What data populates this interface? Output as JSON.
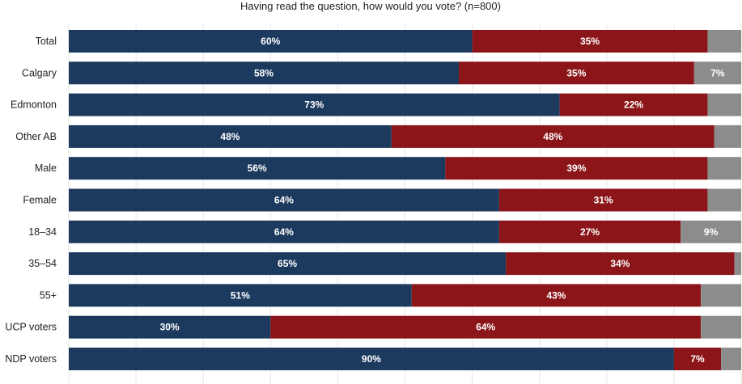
{
  "chart_data": {
    "type": "bar",
    "orientation": "horizontal",
    "stacked": true,
    "title": "Having read the question, how would you vote? (n=800)",
    "categories": [
      "Total",
      "Calgary",
      "Edmonton",
      "Other AB",
      "Male",
      "Female",
      "18–34",
      "35–54",
      "55+",
      "UCP voters",
      "NDP voters"
    ],
    "series": [
      {
        "values": [
          60,
          58,
          73,
          48,
          56,
          64,
          64,
          65,
          51,
          30,
          90
        ],
        "color": "#1c3a5e"
      },
      {
        "values": [
          35,
          35,
          22,
          48,
          39,
          31,
          27,
          34,
          43,
          64,
          7
        ],
        "color": "#8b1518"
      },
      {
        "values": [
          5,
          7,
          5,
          4,
          5,
          5,
          9,
          1,
          6,
          6,
          3
        ],
        "color": "#8c8c8c"
      }
    ],
    "data_labels": [
      [
        "60%",
        "58%",
        "73%",
        "48%",
        "56%",
        "64%",
        "64%",
        "65%",
        "51%",
        "30%",
        "90%"
      ],
      [
        "35%",
        "35%",
        "22%",
        "48%",
        "39%",
        "31%",
        "27%",
        "34%",
        "43%",
        "64%",
        "7%"
      ],
      [
        "",
        "7%",
        "",
        "",
        "",
        "",
        "9%",
        "",
        "",
        "",
        ""
      ]
    ],
    "xlim": [
      0,
      100
    ],
    "grid": true,
    "legend": "none"
  }
}
